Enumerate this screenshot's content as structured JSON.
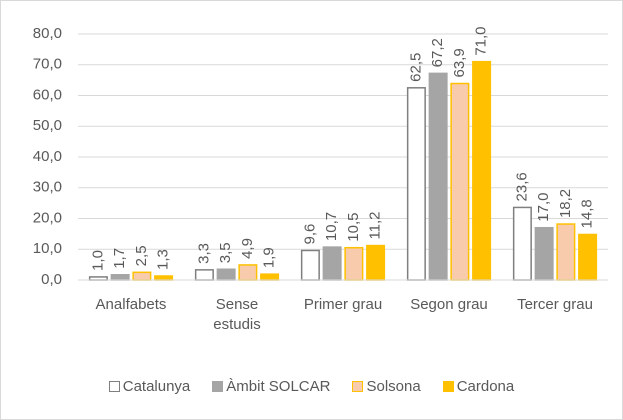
{
  "chart_data": {
    "type": "bar",
    "categories": [
      "Analfabets",
      "Sense estudis",
      "Primer grau",
      "Segon grau",
      "Tercer grau"
    ],
    "series": [
      {
        "name": "Catalunya",
        "color": "#ffffff",
        "border": "#7f7f7f",
        "values": [
          1.0,
          3.3,
          9.6,
          62.5,
          23.6
        ],
        "value_labels": [
          "1,0",
          "3,3",
          "9,6",
          "62,5",
          "23,6"
        ]
      },
      {
        "name": "Àmbit SOLCAR",
        "color": "#a5a5a5",
        "border": "#a5a5a5",
        "values": [
          1.7,
          3.5,
          10.7,
          67.2,
          17.0
        ],
        "value_labels": [
          "1,7",
          "3,5",
          "10,7",
          "67,2",
          "17,0"
        ]
      },
      {
        "name": "Solsona",
        "color": "#f8cbad",
        "border": "#ffc000",
        "values": [
          2.5,
          4.9,
          10.5,
          63.9,
          18.2
        ],
        "value_labels": [
          "2,5",
          "4,9",
          "10,5",
          "63,9",
          "18,2"
        ]
      },
      {
        "name": "Cardona",
        "color": "#ffc000",
        "border": "#ffc000",
        "values": [
          1.3,
          1.9,
          11.2,
          71.0,
          14.8
        ],
        "value_labels": [
          "1,3",
          "1,9",
          "11,2",
          "71,0",
          "14,8"
        ]
      }
    ],
    "ylim": [
      0,
      80
    ],
    "yticks": [
      {
        "value": 0,
        "label": "0,0"
      },
      {
        "value": 10,
        "label": "10,0"
      },
      {
        "value": 20,
        "label": "20,0"
      },
      {
        "value": 30,
        "label": "30,0"
      },
      {
        "value": 40,
        "label": "40,0"
      },
      {
        "value": 50,
        "label": "50,0"
      },
      {
        "value": 60,
        "label": "60,0"
      },
      {
        "value": 70,
        "label": "70,0"
      },
      {
        "value": 80,
        "label": "80,0"
      }
    ],
    "grid": true,
    "legend": "bottom"
  }
}
